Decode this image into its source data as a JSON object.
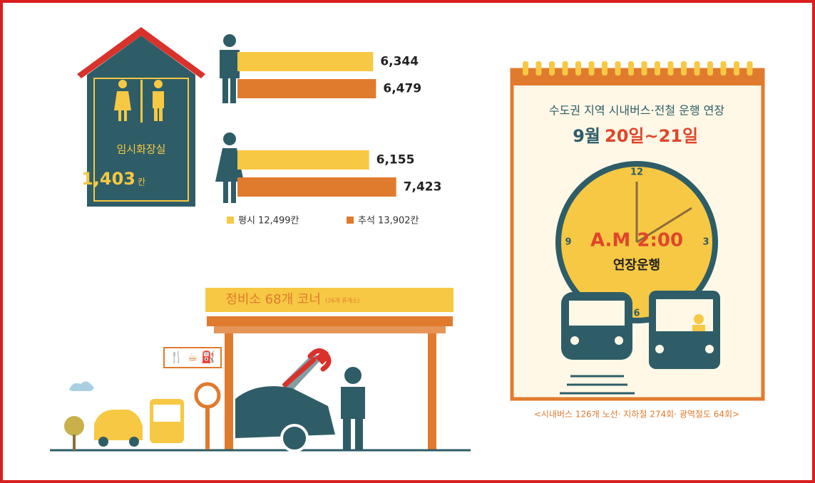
{
  "toilet": {
    "label": "임시화장실",
    "count": "1,403",
    "unit": "칸"
  },
  "chart_data": {
    "type": "bar",
    "orientation": "horizontal",
    "categories": [
      null,
      null
    ],
    "series": [
      {
        "name": "평시 12,499칸",
        "color": "#f7c843",
        "values": [
          6344,
          6155
        ],
        "value_labels": [
          "6,344",
          "6,155"
        ]
      },
      {
        "name": "추석 13,902칸",
        "color": "#e07b2e",
        "values": [
          6479,
          7423
        ],
        "value_labels": [
          "6,479",
          "7,423"
        ]
      }
    ]
  },
  "service": {
    "title": "정비소 68개 코너",
    "note": "(26개 휴게소)"
  },
  "calendar": {
    "heading": "수도권 지역 시내버스·전철 운행 연장",
    "month": "9월",
    "days": "20일~21일",
    "clock_numbers": [
      "12",
      "3",
      "6",
      "9"
    ],
    "time": "A.M 2:00",
    "caption": "연장운행",
    "footnote": "<시내버스 126개 노선· 지하철 274회· 광역철도 64회>"
  }
}
